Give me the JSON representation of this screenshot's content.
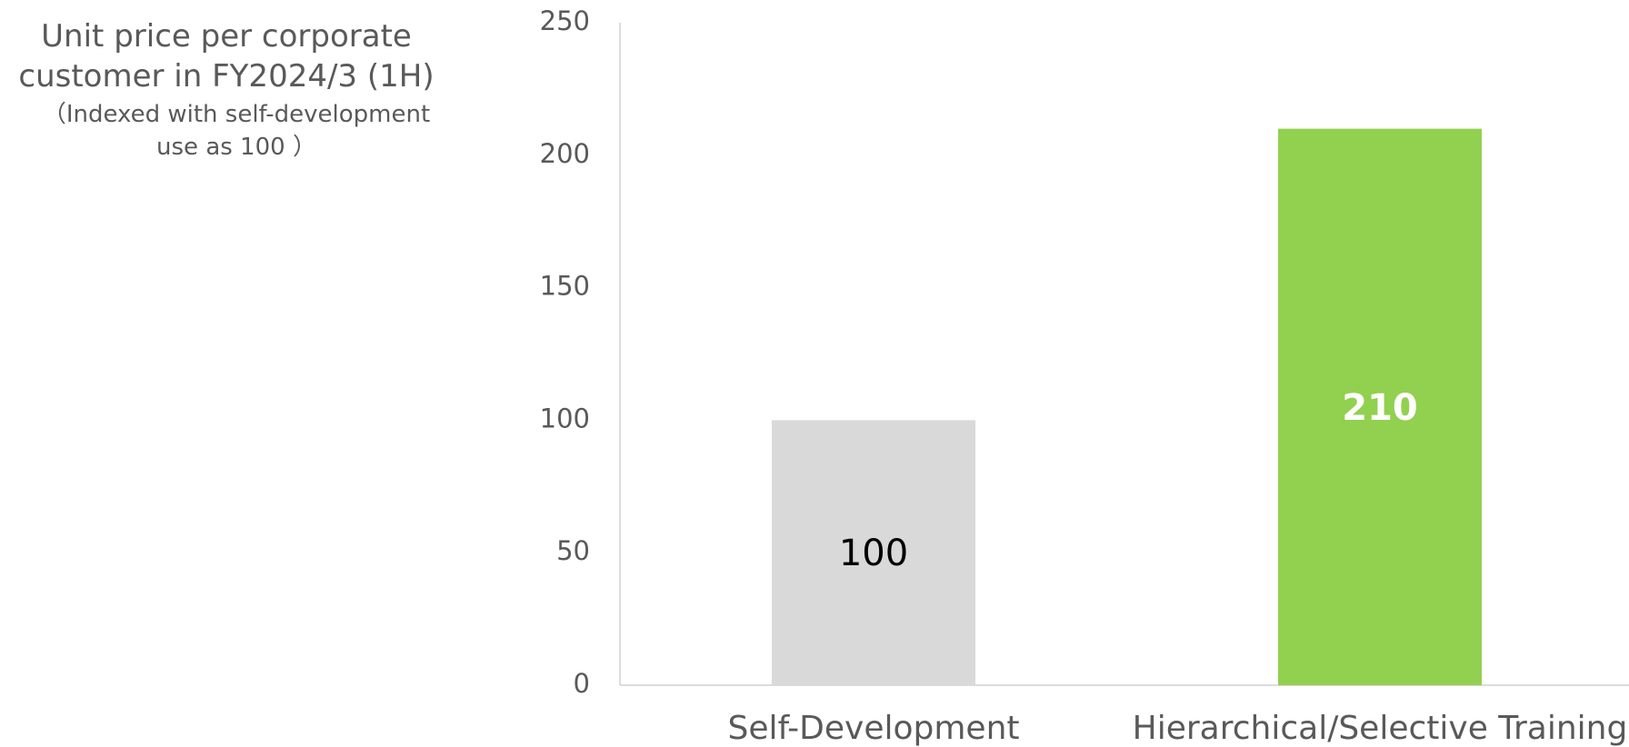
{
  "chart_data": {
    "type": "bar",
    "title": "Unit price per corporate customer in FY2024/3 (1H)",
    "subtitle": "（Indexed with self-development use as 100 ）",
    "categories": [
      "Self-Development",
      "Hierarchical/Selective Training"
    ],
    "values": [
      100,
      210
    ],
    "colors": [
      "#d9d9d9",
      "#92d050"
    ],
    "ylim": [
      0,
      250
    ],
    "yticks": [
      0,
      50,
      100,
      150,
      200,
      250
    ],
    "grid": false
  }
}
